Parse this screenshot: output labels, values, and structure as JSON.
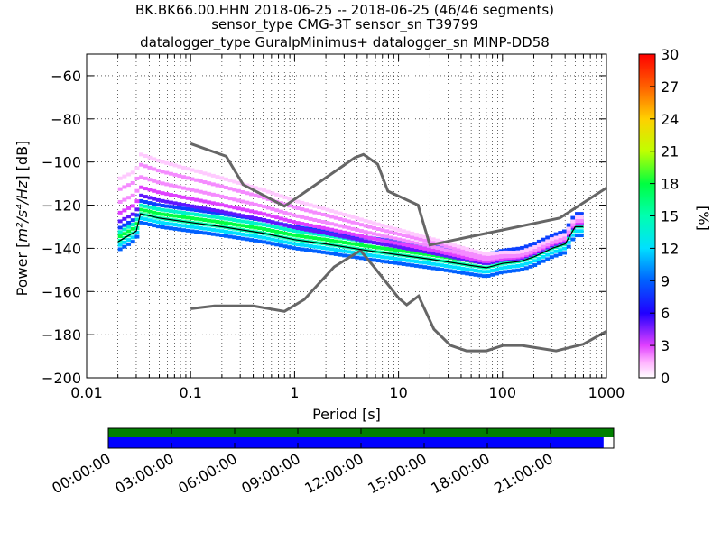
{
  "chart_data": {
    "type": "heatmap",
    "title_lines": [
      "BK.BK66.00.HHN   2018-06-25 -- 2018-06-25  (46/46 segments)",
      "sensor_type CMG-3T sensor_sn T39799",
      "datalogger_type GuralpMinimus+ datalogger_sn MINP-DD58"
    ],
    "xlabel": "Period [s]",
    "ylabel_prefix": "Power [",
    "ylabel_math": "m²/s⁴/Hz",
    "ylabel_suffix": "] [dB]",
    "x_scale": "log",
    "xlim": [
      0.01,
      1000
    ],
    "ylim": [
      -200,
      -50
    ],
    "x_ticks": [
      0.01,
      0.1,
      1,
      10,
      100,
      1000
    ],
    "x_tick_labels": [
      "0.01",
      "0.1",
      "1",
      "10",
      "100",
      "1000"
    ],
    "y_ticks": [
      -200,
      -180,
      -160,
      -140,
      -120,
      -100,
      -80,
      -60
    ],
    "y_tick_labels": [
      "−200",
      "−180",
      "−160",
      "−140",
      "−120",
      "−100",
      "−80",
      "−60"
    ],
    "grid": true,
    "colorbar": {
      "label": "[%]",
      "range": [
        0,
        30
      ],
      "ticks": [
        0,
        3,
        6,
        9,
        12,
        15,
        18,
        21,
        24,
        27,
        30
      ],
      "tick_labels": [
        "0",
        "3",
        "6",
        "9",
        "12",
        "15",
        "18",
        "21",
        "24",
        "27",
        "30"
      ]
    },
    "noise_models": [
      {
        "name": "",
        "points": [
          [
            0.1,
            -91.5
          ],
          [
            0.22,
            -97.4
          ],
          [
            0.32,
            -110.5
          ],
          [
            0.8,
            -120.5
          ],
          [
            3.8,
            -98
          ],
          [
            4.6,
            -96.5
          ],
          [
            6.3,
            -101
          ],
          [
            7.9,
            -113.5
          ],
          [
            15.4,
            -120
          ],
          [
            20,
            -138.5
          ],
          [
            354.8,
            -126
          ],
          [
            1000,
            -112
          ]
        ]
      },
      {
        "name": "",
        "points": [
          [
            0.1,
            -168
          ],
          [
            0.17,
            -166.7
          ],
          [
            0.4,
            -166.7
          ],
          [
            0.8,
            -169.2
          ],
          [
            1.24,
            -163.7
          ],
          [
            2.4,
            -148.6
          ],
          [
            4.3,
            -141
          ],
          [
            5.9,
            -149
          ],
          [
            10,
            -163
          ],
          [
            12,
            -166.2
          ],
          [
            15.6,
            -162.1
          ],
          [
            21.9,
            -177.5
          ],
          [
            31.6,
            -185
          ],
          [
            45,
            -187.5
          ],
          [
            70,
            -187.5
          ],
          [
            101,
            -185
          ],
          [
            154,
            -185
          ],
          [
            328,
            -187.5
          ],
          [
            600,
            -184.4
          ],
          [
            1000,
            -178.4
          ]
        ]
      }
    ],
    "median": {
      "name": "",
      "points": [
        [
          0.02,
          -137
        ],
        [
          0.03,
          -132
        ],
        [
          0.033,
          -124
        ],
        [
          0.05,
          -126
        ],
        [
          0.1,
          -128
        ],
        [
          0.2,
          -130
        ],
        [
          0.5,
          -133
        ],
        [
          1,
          -136
        ],
        [
          2,
          -138
        ],
        [
          5,
          -141
        ],
        [
          10,
          -143
        ],
        [
          20,
          -145
        ],
        [
          50,
          -148
        ],
        [
          70,
          -149
        ],
        [
          100,
          -147
        ],
        [
          150,
          -146
        ],
        [
          200,
          -144
        ],
        [
          300,
          -140
        ],
        [
          400,
          -138
        ],
        [
          500,
          -130
        ],
        [
          600,
          -130
        ]
      ]
    },
    "psd_density_traces": [
      {
        "offset": 0,
        "weight": 15
      },
      {
        "offset": -2,
        "weight": 12
      },
      {
        "offset": -4,
        "weight": 9
      },
      {
        "offset": 2,
        "weight": 18
      },
      {
        "offset": 4,
        "weight": 14
      },
      {
        "offset": 6,
        "weight": 8
      },
      {
        "offset": 9,
        "weight": 5
      },
      {
        "offset": 13,
        "weight": 3
      },
      {
        "offset": 18,
        "weight": 2
      },
      {
        "offset": 24,
        "weight": 2
      },
      {
        "offset": 29,
        "weight": 1
      }
    ]
  },
  "timeline": {
    "tick_labels": [
      "00:00:00",
      "03:00:00",
      "06:00:00",
      "09:00:00",
      "12:00:00",
      "15:00:00",
      "18:00:00",
      "21:00:00"
    ],
    "data_available_fraction": 0.98,
    "coverage_fraction": 1.0,
    "colors": {
      "coverage": "#008000",
      "data": "#0000ff"
    }
  }
}
